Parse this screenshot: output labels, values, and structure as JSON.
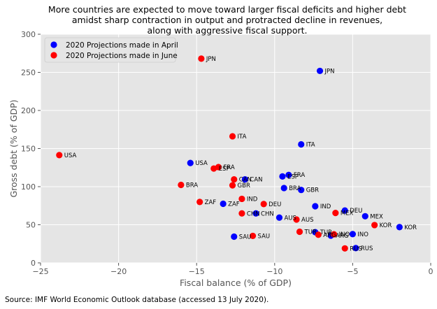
{
  "chart_data": {
    "type": "scatter",
    "title": [
      "More countries are expected to move toward larger fiscal deficits and higher debt",
      "amidst sharp contraction in output and protracted decline in revenues,",
      "along with aggressive fiscal support."
    ],
    "xlabel": "Fiscal balance (% of GDP)",
    "ylabel": "Gross debt (% of GDP)",
    "xlim": [
      -25,
      0
    ],
    "ylim": [
      0,
      300
    ],
    "xticks": [
      -25,
      -20,
      -15,
      -10,
      -5,
      0
    ],
    "yticks": [
      0,
      50,
      100,
      150,
      200,
      250,
      300
    ],
    "xtick_labels": [
      "−25",
      "−20",
      "−15",
      "−10",
      "−5",
      "0"
    ],
    "ytick_labels": [
      "0",
      "50",
      "100",
      "150",
      "200",
      "250",
      "300"
    ],
    "grid": true,
    "legend_position": "top-left",
    "series": [
      {
        "name": "2020 Projections made in April",
        "color": "#0000ff",
        "points": [
          {
            "label": "JPN",
            "x": -7.1,
            "y": 251.9
          },
          {
            "label": "ITA",
            "x": -8.3,
            "y": 155.5
          },
          {
            "label": "USA",
            "x": -15.4,
            "y": 131.1
          },
          {
            "label": "FRA",
            "x": -9.1,
            "y": 115.4
          },
          {
            "label": "ESP",
            "x": -9.5,
            "y": 113.4
          },
          {
            "label": "CAN",
            "x": -11.9,
            "y": 109.5
          },
          {
            "label": "BRA",
            "x": -9.4,
            "y": 98.2
          },
          {
            "label": "GBR",
            "x": -8.3,
            "y": 95.7
          },
          {
            "label": "ZAF",
            "x": -13.3,
            "y": 77.5
          },
          {
            "label": "IND",
            "x": -7.4,
            "y": 74.3
          },
          {
            "label": "DEU",
            "x": -5.5,
            "y": 68.7
          },
          {
            "label": "CHN",
            "x": -11.2,
            "y": 64.9
          },
          {
            "label": "MEX",
            "x": -4.2,
            "y": 61.2
          },
          {
            "label": "AUS",
            "x": -9.7,
            "y": 59.4
          },
          {
            "label": "KOR",
            "x": -2.0,
            "y": 46.9
          },
          {
            "label": "TUR",
            "x": -7.4,
            "y": 40.3
          },
          {
            "label": "INO",
            "x": -5.0,
            "y": 37.7
          },
          {
            "label": "ARG",
            "x": -6.4,
            "y": 35.8
          },
          {
            "label": "SAU",
            "x": -12.6,
            "y": 34.4
          },
          {
            "label": "RUS",
            "x": -4.8,
            "y": 19.4
          }
        ]
      },
      {
        "name": "2020 Projections made in June",
        "color": "#ff0000",
        "points": [
          {
            "label": "JPN",
            "x": -14.7,
            "y": 268.0
          },
          {
            "label": "ITA",
            "x": -12.7,
            "y": 166.1
          },
          {
            "label": "USA",
            "x": -23.8,
            "y": 141.4
          },
          {
            "label": "FRA",
            "x": -13.6,
            "y": 125.7
          },
          {
            "label": "ESP",
            "x": -13.9,
            "y": 123.8
          },
          {
            "label": "CAN",
            "x": -12.6,
            "y": 109.5
          },
          {
            "label": "GBR",
            "x": -12.7,
            "y": 101.7
          },
          {
            "label": "BRA",
            "x": -16.0,
            "y": 102.3
          },
          {
            "label": "IND",
            "x": -12.1,
            "y": 84.0
          },
          {
            "label": "ZAF",
            "x": -14.8,
            "y": 79.9
          },
          {
            "label": "DEU",
            "x": -10.7,
            "y": 77.2
          },
          {
            "label": "MEX",
            "x": -6.1,
            "y": 65.5
          },
          {
            "label": "CHN",
            "x": -12.1,
            "y": 64.9
          },
          {
            "label": "AUS",
            "x": -8.6,
            "y": 56.9
          },
          {
            "label": "KOR",
            "x": -3.6,
            "y": 49.6
          },
          {
            "label": "TUR",
            "x": -8.4,
            "y": 40.8
          },
          {
            "label": "INO",
            "x": -6.2,
            "y": 37.5
          },
          {
            "label": "ARG",
            "x": -7.2,
            "y": 36.9
          },
          {
            "label": "SAU",
            "x": -11.4,
            "y": 35.4
          },
          {
            "label": "RUS",
            "x": -5.5,
            "y": 19.0
          }
        ]
      }
    ]
  },
  "source": "Source: IMF World Economic Outlook database (accessed 13 July 2020)."
}
